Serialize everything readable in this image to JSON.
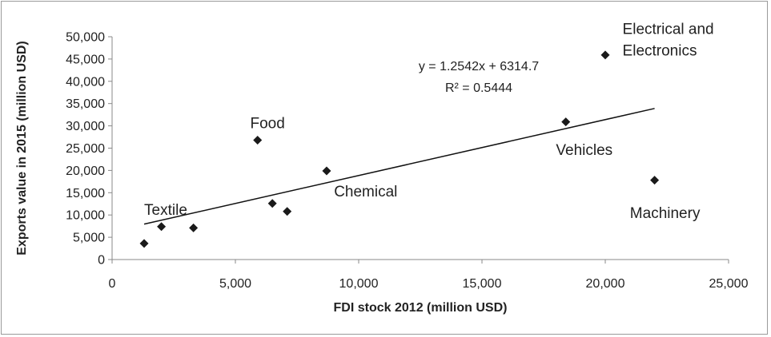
{
  "chart_data": {
    "type": "scatter",
    "xlabel": "FDI stock  2012 (million USD)",
    "ylabel": "Exports  value in 2015 (million USD)",
    "xlim": [
      0,
      25000
    ],
    "ylim": [
      0,
      50000
    ],
    "x_ticks": [
      0,
      5000,
      10000,
      15000,
      20000,
      25000
    ],
    "x_tick_labels": [
      "0",
      "5,000",
      "10,000",
      "15,000",
      "20,000",
      "25,000"
    ],
    "y_ticks": [
      0,
      5000,
      10000,
      15000,
      20000,
      25000,
      30000,
      35000,
      40000,
      45000,
      50000
    ],
    "y_tick_labels": [
      "0",
      "5,000",
      "10,000",
      "15,000",
      "20,000",
      "25,000",
      "30,000",
      "35,000",
      "40,000",
      "45,000",
      "50,000"
    ],
    "grid": false,
    "marker": "diamond",
    "marker_color": "#1a1a1a",
    "points": [
      {
        "x": 1300,
        "y": 3600
      },
      {
        "x": 2000,
        "y": 7400
      },
      {
        "x": 3300,
        "y": 7100
      },
      {
        "x": 5900,
        "y": 26800
      },
      {
        "x": 6500,
        "y": 12600
      },
      {
        "x": 7100,
        "y": 10800
      },
      {
        "x": 8700,
        "y": 19900
      },
      {
        "x": 18400,
        "y": 30900
      },
      {
        "x": 20000,
        "y": 45900
      },
      {
        "x": 22000,
        "y": 17800
      }
    ],
    "trendline": {
      "type": "linear",
      "slope": 1.2542,
      "intercept": 6314.7,
      "x_range": [
        1300,
        22000
      ],
      "equation": "y = 1.2542x + 6314.7",
      "r_squared": "R² = 0.5444"
    },
    "annotations": [
      {
        "lines": [
          "Textile"
        ],
        "x": 1300,
        "y": 10000
      },
      {
        "lines": [
          "Food"
        ],
        "x": 5600,
        "y": 29500
      },
      {
        "lines": [
          "Chemical"
        ],
        "x": 9000,
        "y": 14200
      },
      {
        "lines": [
          "Vehicles"
        ],
        "x": 18000,
        "y": 23500
      },
      {
        "lines": [
          "Electrical and",
          "Electronics"
        ],
        "x": 20700,
        "y": 50600
      },
      {
        "lines": [
          "Machinery"
        ],
        "x": 21000,
        "y": 9300
      }
    ]
  }
}
